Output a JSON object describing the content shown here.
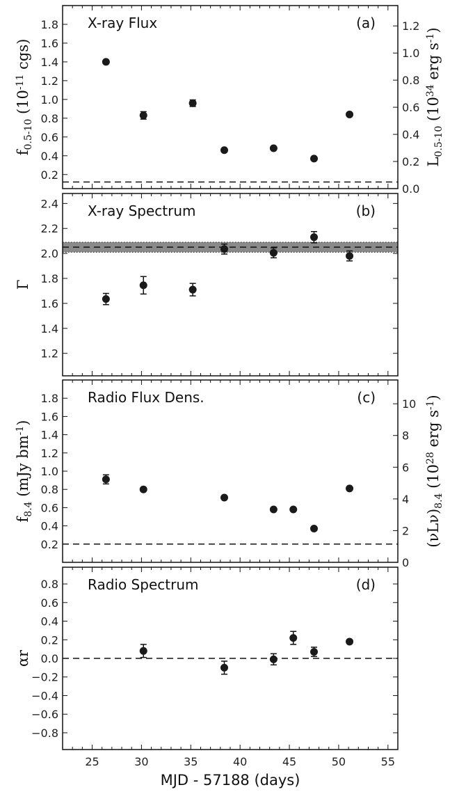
{
  "chart_data": [
    {
      "type": "scatter",
      "title": "X-ray Flux",
      "panel_label": "(a)",
      "ylabel": "f_{0.5-10} (10^{-11} cgs)",
      "ylabel_right": "L_{0.5-10} (10^{34} erg s^{-1})",
      "xlim": [
        22,
        56
      ],
      "ylim": [
        0.05,
        2.0
      ],
      "yticks": [
        0.2,
        0.4,
        0.6,
        0.8,
        1.0,
        1.2,
        1.4,
        1.6,
        1.8
      ],
      "ytick_labels": [
        "0.2",
        "0.4",
        "0.6",
        "0.8",
        "1.0",
        "1.2",
        "1.4",
        "1.6",
        "1.8"
      ],
      "ylim_right": [
        0.0,
        1.35
      ],
      "yticks_right": [
        0.0,
        0.2,
        0.4,
        0.6,
        0.8,
        1.0,
        1.2
      ],
      "ytick_labels_right": [
        "0.0",
        "0.2",
        "0.4",
        "0.6",
        "0.8",
        "1.0",
        "1.2"
      ],
      "hline": 0.12,
      "points": [
        {
          "x": 26.4,
          "y": 1.4,
          "err": 0.02
        },
        {
          "x": 30.2,
          "y": 0.83,
          "err": 0.04
        },
        {
          "x": 35.2,
          "y": 0.96,
          "err": 0.035
        },
        {
          "x": 38.4,
          "y": 0.46,
          "err": 0.015
        },
        {
          "x": 43.4,
          "y": 0.48,
          "err": 0.015
        },
        {
          "x": 47.5,
          "y": 0.37,
          "err": 0.015
        },
        {
          "x": 51.1,
          "y": 0.84,
          "err": 0.015
        }
      ]
    },
    {
      "type": "scatter",
      "title": "X-ray Spectrum",
      "panel_label": "(b)",
      "ylabel": "Γ",
      "xlim": [
        22,
        56
      ],
      "ylim": [
        1.02,
        2.48
      ],
      "yticks": [
        1.2,
        1.4,
        1.6,
        1.8,
        2.0,
        2.2,
        2.4
      ],
      "ytick_labels": [
        "1.2",
        "1.4",
        "1.6",
        "1.8",
        "2.0",
        "2.2",
        "2.4"
      ],
      "hline": 2.05,
      "band": [
        2.01,
        2.09
      ],
      "points": [
        {
          "x": 26.4,
          "y": 1.635,
          "err": 0.045
        },
        {
          "x": 30.2,
          "y": 1.745,
          "err": 0.07
        },
        {
          "x": 35.2,
          "y": 1.71,
          "err": 0.05
        },
        {
          "x": 38.4,
          "y": 2.035,
          "err": 0.04
        },
        {
          "x": 43.4,
          "y": 2.005,
          "err": 0.04
        },
        {
          "x": 47.5,
          "y": 2.13,
          "err": 0.045
        },
        {
          "x": 51.1,
          "y": 1.98,
          "err": 0.04
        }
      ]
    },
    {
      "type": "scatter",
      "title": "Radio Flux Dens.",
      "panel_label": "(c)",
      "ylabel": "f_{8.4} (mJy bm^{-1})",
      "ylabel_right": "(νL_ν)_{8.4} (10^{28} erg s^{-1})",
      "xlim": [
        22,
        56
      ],
      "ylim": [
        0.0,
        2.0
      ],
      "yticks": [
        0.2,
        0.4,
        0.6,
        0.8,
        1.0,
        1.2,
        1.4,
        1.6,
        1.8
      ],
      "ytick_labels": [
        "0.2",
        "0.4",
        "0.6",
        "0.8",
        "1.0",
        "1.2",
        "1.4",
        "1.6",
        "1.8"
      ],
      "ylim_right": [
        0,
        11.5
      ],
      "yticks_right": [
        0,
        2,
        4,
        6,
        8,
        10
      ],
      "ytick_labels_right": [
        "0",
        "2",
        "4",
        "6",
        "8",
        "10"
      ],
      "hline": 0.2,
      "points": [
        {
          "x": 26.4,
          "y": 0.91,
          "err": 0.05
        },
        {
          "x": 30.2,
          "y": 0.8,
          "err": 0.015
        },
        {
          "x": 38.4,
          "y": 0.71,
          "err": 0.015
        },
        {
          "x": 43.4,
          "y": 0.58,
          "err": 0.015
        },
        {
          "x": 45.4,
          "y": 0.58,
          "err": 0.015
        },
        {
          "x": 47.5,
          "y": 0.37,
          "err": 0.015
        },
        {
          "x": 51.1,
          "y": 0.81,
          "err": 0.015
        }
      ]
    },
    {
      "type": "scatter",
      "title": "Radio Spectrum",
      "panel_label": "(d)",
      "ylabel": "α_r",
      "xlabel": "MJD - 57188 (days)",
      "xlim": [
        22,
        56
      ],
      "xticks": [
        25,
        30,
        35,
        40,
        45,
        50,
        55
      ],
      "xtick_labels": [
        "25",
        "30",
        "35",
        "40",
        "45",
        "50",
        "55"
      ],
      "ylim": [
        -0.98,
        0.98
      ],
      "yticks": [
        -0.8,
        -0.6,
        -0.4,
        -0.2,
        0.0,
        0.2,
        0.4,
        0.6,
        0.8
      ],
      "ytick_labels": [
        "−0.8",
        "−0.6",
        "−0.4",
        "−0.2",
        "0.0",
        "0.2",
        "0.4",
        "0.6",
        "0.8"
      ],
      "hline": 0.0,
      "points": [
        {
          "x": 30.2,
          "y": 0.08,
          "err": 0.07
        },
        {
          "x": 38.4,
          "y": -0.1,
          "err": 0.07
        },
        {
          "x": 43.4,
          "y": -0.01,
          "err": 0.06
        },
        {
          "x": 45.4,
          "y": 0.22,
          "err": 0.07
        },
        {
          "x": 47.5,
          "y": 0.07,
          "err": 0.05
        },
        {
          "x": 51.1,
          "y": 0.18,
          "err": 0.02
        }
      ]
    }
  ]
}
